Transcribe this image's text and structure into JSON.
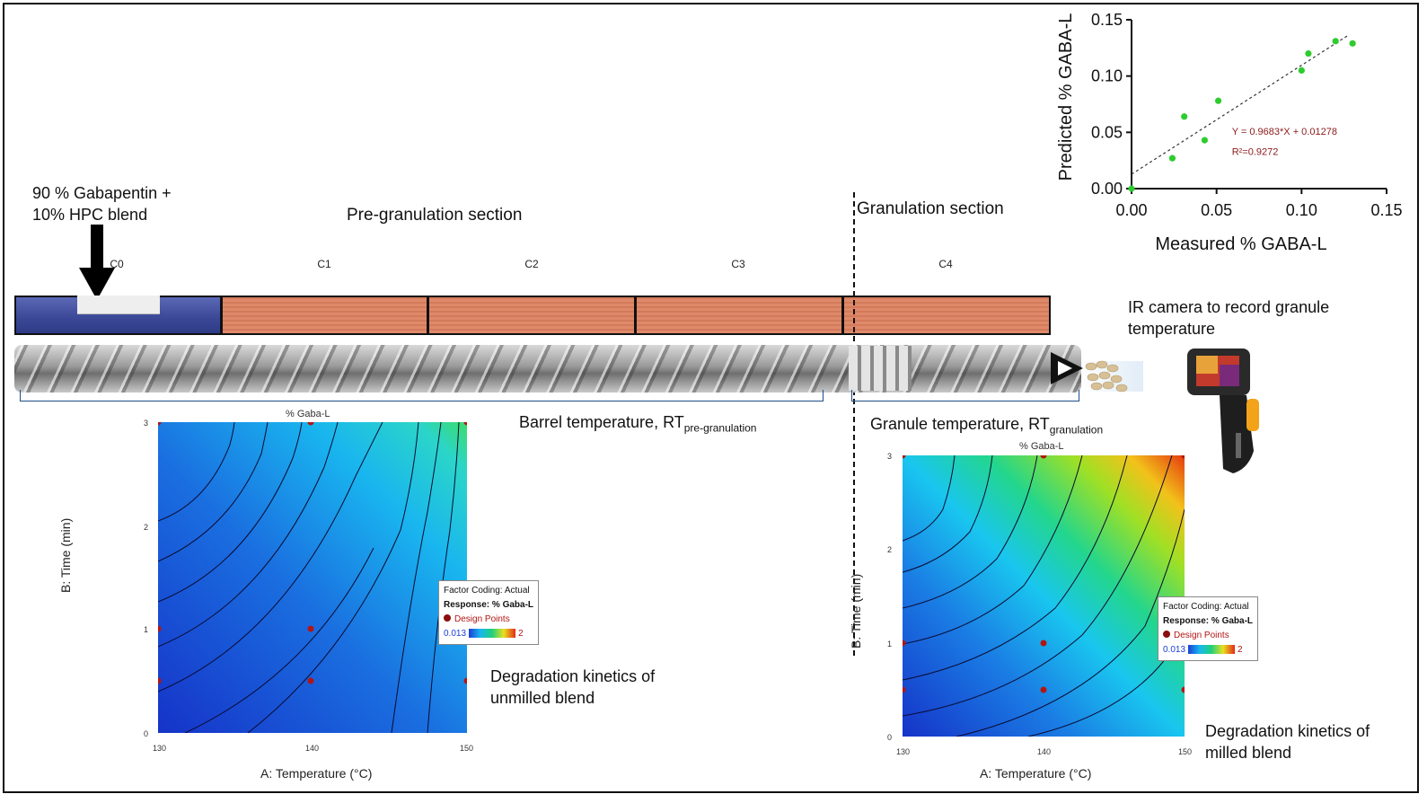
{
  "feed": {
    "line1": "90 % Gabapentin +",
    "line2": "10% HPC blend"
  },
  "sections": {
    "pre": "Pre-granulation section",
    "gran": "Granulation section"
  },
  "zones": [
    {
      "label": "C0"
    },
    {
      "label": "C1"
    },
    {
      "label": "C2"
    },
    {
      "label": "C3"
    },
    {
      "label": "C4"
    }
  ],
  "ir": {
    "line1": "IR camera to record granule",
    "line2": "temperature"
  },
  "barrel": {
    "text": "Barrel temperature, RT",
    "sub": "pre-granulation"
  },
  "granule": {
    "text": "Granule temperature, RT",
    "sub": "granulation"
  },
  "captions": {
    "unmilled": {
      "line1": "Degradation kinetics of",
      "line2": "unmilled blend"
    },
    "milled": {
      "line1": "Degradation kinetics of",
      "line2": "milled blend"
    }
  },
  "contour_left": {
    "title": "% Gaba-L",
    "xlabel": "A: Temperature (°C)",
    "ylabel": "B: Time (min)",
    "xticks": [
      "130",
      "140",
      "150"
    ],
    "yticks": [
      "0",
      "1",
      "2",
      "3"
    ],
    "legend": {
      "coding": "Factor Coding: Actual",
      "response": "Response: % Gaba-L",
      "points": "Design Points",
      "min": "0.013",
      "max": "2"
    }
  },
  "contour_right": {
    "title": "% Gaba-L",
    "xlabel": "A: Temperature (°C)",
    "ylabel": "B: Time (min)",
    "xticks": [
      "130",
      "140",
      "150"
    ],
    "yticks": [
      "0",
      "1",
      "2",
      "3"
    ],
    "legend": {
      "coding": "Factor Coding: Actual",
      "response": "Response: % Gaba-L",
      "points": "Design Points",
      "min": "0.013",
      "max": "2"
    }
  },
  "chart_data": {
    "type": "scatter",
    "xlabel": "Measured % GABA-L",
    "ylabel": "Predicted % GABA-L",
    "xlim": [
      0,
      0.15
    ],
    "ylim": [
      0,
      0.15
    ],
    "xticks": [
      "0.00",
      "0.05",
      "0.10",
      "0.15"
    ],
    "yticks": [
      "0.00",
      "0.05",
      "0.10",
      "0.15"
    ],
    "points": [
      [
        0.0,
        0.0
      ],
      [
        0.024,
        0.027
      ],
      [
        0.031,
        0.064
      ],
      [
        0.043,
        0.043
      ],
      [
        0.051,
        0.078
      ],
      [
        0.1,
        0.105
      ],
      [
        0.104,
        0.12
      ],
      [
        0.12,
        0.131
      ],
      [
        0.13,
        0.129
      ]
    ],
    "fit": {
      "slope": 0.9683,
      "intercept": 0.01278
    },
    "equation": "Y = 0.9683*X + 0.01278",
    "r2": "R²=0.9272",
    "point_color": "#2ecc2e",
    "fit_color": "#333333"
  }
}
